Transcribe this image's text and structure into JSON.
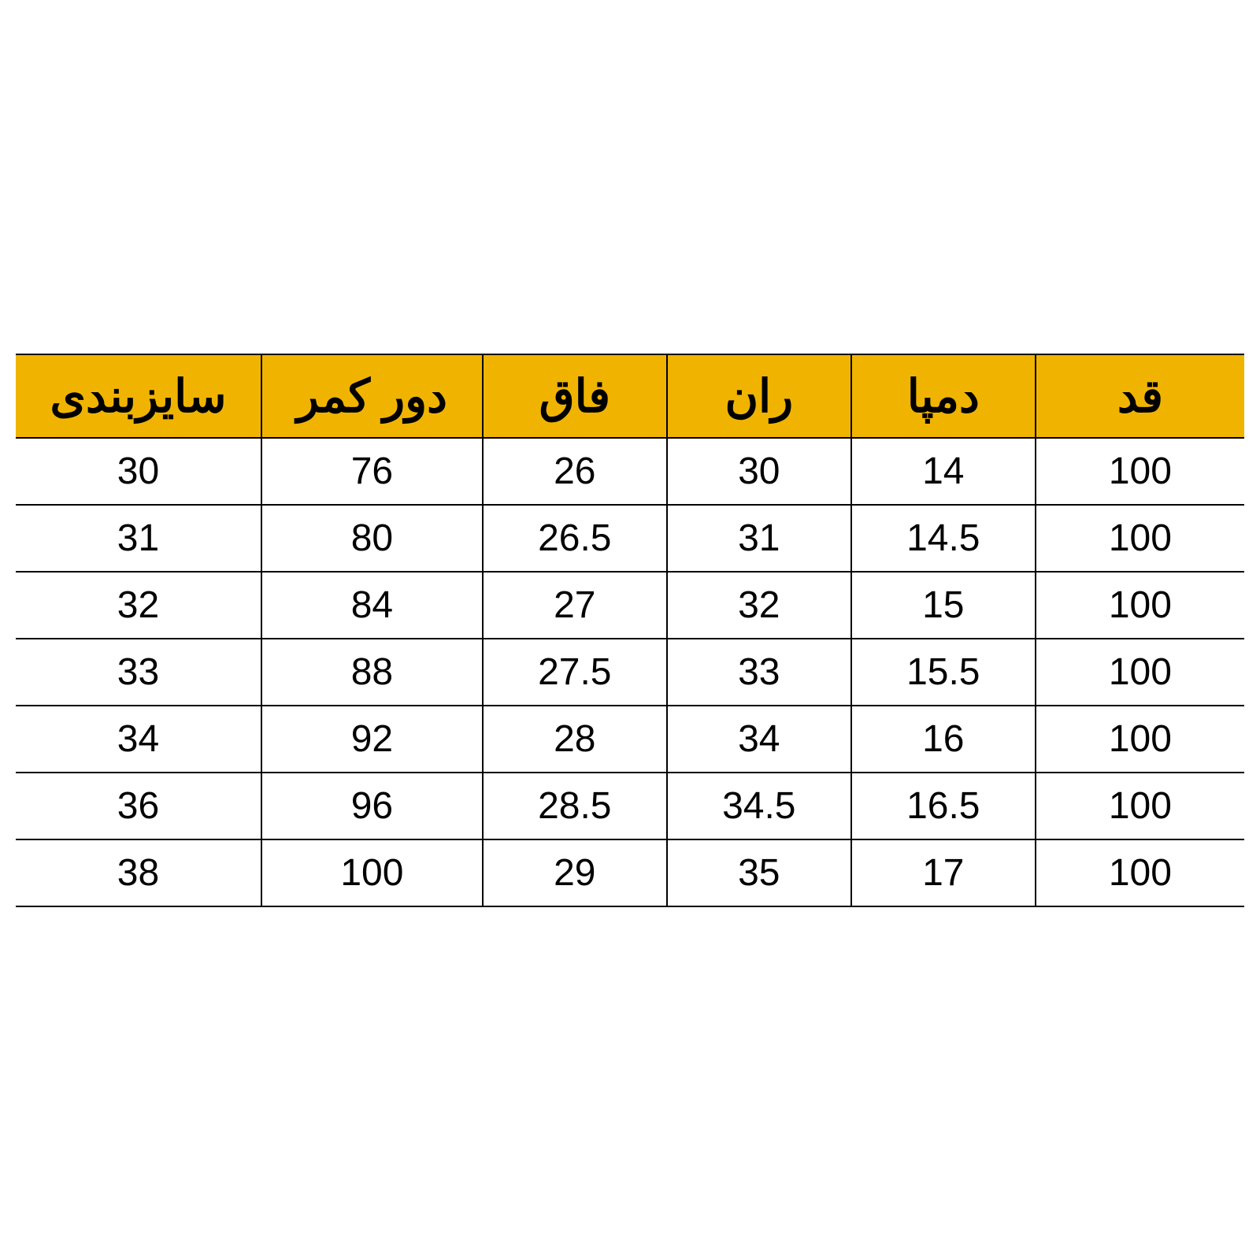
{
  "size_table": {
    "type": "table",
    "header_bg": "#f0b400",
    "header_text_color": "#000000",
    "body_bg": "#ffffff",
    "body_text_color": "#000000",
    "border_color": "#000000",
    "header_fontsize": 58,
    "body_fontsize": 48,
    "columns": [
      {
        "key": "size",
        "label": "سایزبندی",
        "width_pct": 20
      },
      {
        "key": "waist",
        "label": "دور کمر",
        "width_pct": 18
      },
      {
        "key": "rise",
        "label": "فاق",
        "width_pct": 15
      },
      {
        "key": "thigh",
        "label": "ران",
        "width_pct": 15
      },
      {
        "key": "hem",
        "label": "دمپا",
        "width_pct": 15
      },
      {
        "key": "length",
        "label": "قد",
        "width_pct": 17
      }
    ],
    "rows": [
      [
        "30",
        "76",
        "26",
        "30",
        "14",
        "100"
      ],
      [
        "31",
        "80",
        "26.5",
        "31",
        "14.5",
        "100"
      ],
      [
        "32",
        "84",
        "27",
        "32",
        "15",
        "100"
      ],
      [
        "33",
        "88",
        "27.5",
        "33",
        "15.5",
        "100"
      ],
      [
        "34",
        "92",
        "28",
        "34",
        "16",
        "100"
      ],
      [
        "36",
        "96",
        "28.5",
        "34.5",
        "16.5",
        "100"
      ],
      [
        "38",
        "100",
        "29",
        "35",
        "17",
        "100"
      ]
    ]
  }
}
